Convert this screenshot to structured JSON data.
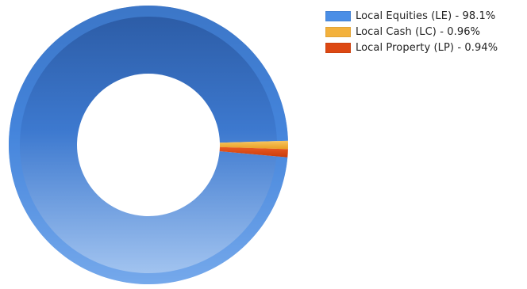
{
  "chart_data": {
    "type": "pie",
    "variant": "donut",
    "categories": [
      "Local Equities (LE)",
      "Local Cash (LC)",
      "Local Property (LP)"
    ],
    "values": [
      98.1,
      0.96,
      0.94
    ],
    "colors": [
      "#4a8ee6",
      "#f3b13c",
      "#dd4812"
    ],
    "legend": [
      "Local Equities (LE) - 98.1%",
      "Local Cash (LC) - 0.96%",
      "Local Property (LP) - 0.94%"
    ],
    "legend_position": "top-right"
  }
}
